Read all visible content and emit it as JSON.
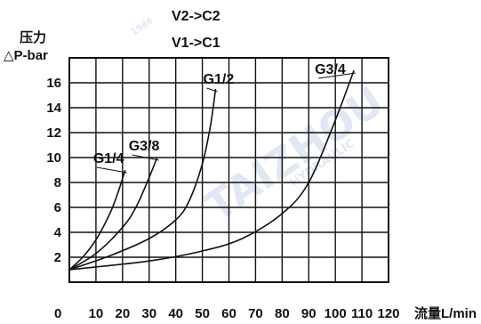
{
  "chart_data": {
    "type": "line",
    "title_lines": [
      "V2->C2",
      "V1->C1"
    ],
    "ylabel_line1": "压力",
    "ylabel_line2": "△P-bar",
    "xlabel": "流量L/min",
    "xlim": [
      0,
      120
    ],
    "ylim": [
      0,
      18
    ],
    "x_ticks": [
      0,
      10,
      20,
      30,
      40,
      50,
      60,
      70,
      80,
      90,
      100,
      110,
      120
    ],
    "y_ticks": [
      2,
      4,
      6,
      8,
      10,
      12,
      14,
      16
    ],
    "grid": true,
    "series": [
      {
        "name": "G1/4",
        "x": [
          0,
          5,
          10,
          15,
          18,
          21
        ],
        "y": [
          1.0,
          2.0,
          3.4,
          5.4,
          7.0,
          9.0
        ]
      },
      {
        "name": "G3/8",
        "x": [
          0,
          10,
          20,
          25,
          30,
          33
        ],
        "y": [
          1.0,
          2.3,
          4.4,
          6.0,
          8.4,
          10.0
        ]
      },
      {
        "name": "G1/2",
        "x": [
          0,
          15,
          30,
          40,
          45,
          50,
          53,
          55
        ],
        "y": [
          1.0,
          2.1,
          3.5,
          5.0,
          6.5,
          9.5,
          12.5,
          15.5
        ]
      },
      {
        "name": "G3/4",
        "x": [
          0,
          30,
          50,
          65,
          80,
          90,
          100,
          107
        ],
        "y": [
          1.0,
          1.7,
          2.5,
          3.5,
          5.5,
          8.0,
          13.0,
          17.0
        ]
      }
    ]
  },
  "watermark": {
    "brand": "TAIZHOU",
    "line1": "HYDRAULIC",
    "year": "1986"
  }
}
